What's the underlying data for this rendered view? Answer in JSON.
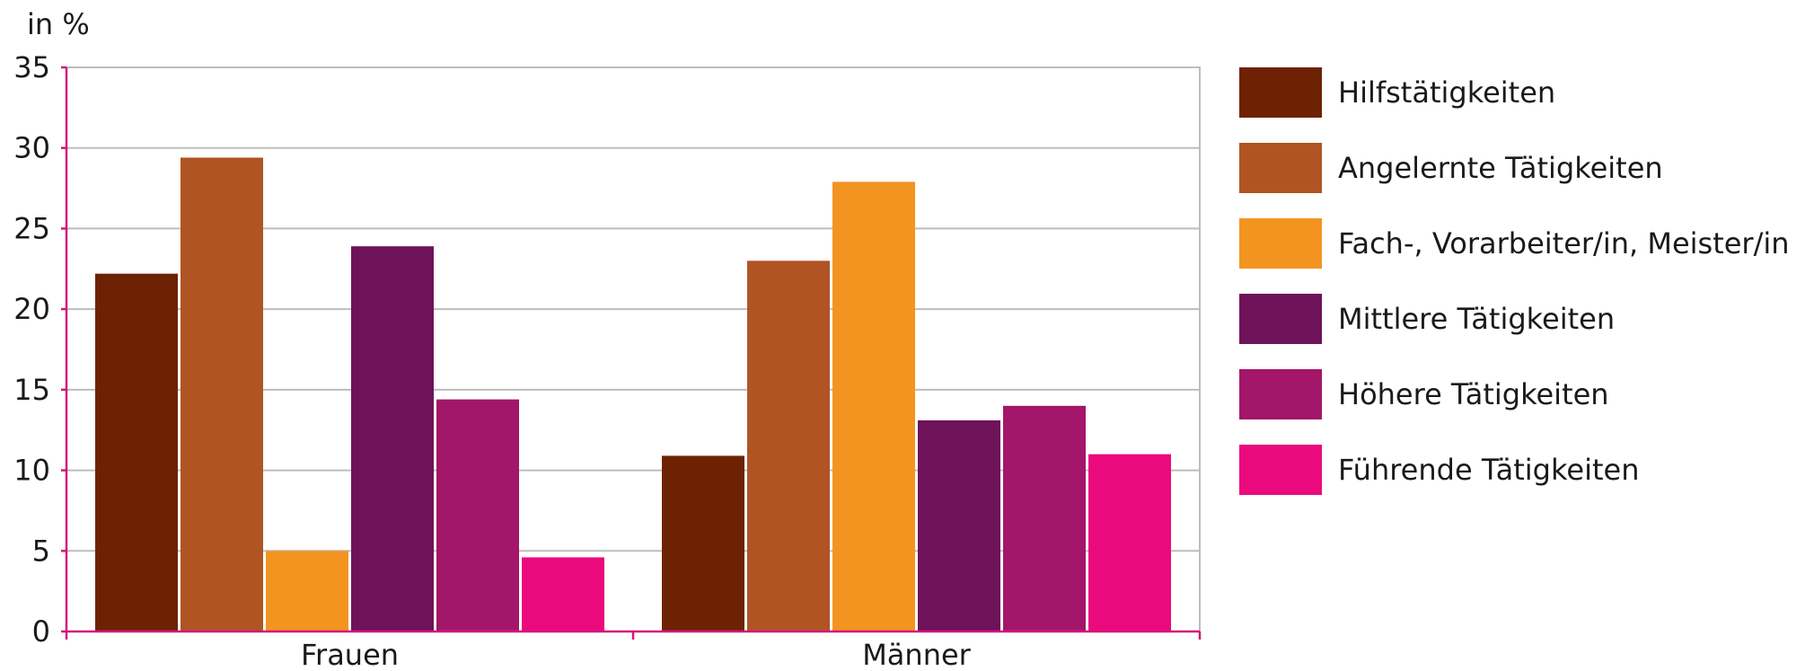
{
  "chart_data": {
    "type": "bar",
    "unit_label": "in %",
    "categories": [
      "Frauen",
      "Männer"
    ],
    "ylim": [
      0,
      35
    ],
    "yticks": [
      0,
      5,
      10,
      15,
      20,
      25,
      30,
      35
    ],
    "ytick_labels": [
      "0",
      "5",
      "10",
      "15",
      "20",
      "25",
      "30",
      "35"
    ],
    "grid": true,
    "legend_position": "right",
    "series": [
      {
        "name": "Hilfstätigkeiten",
        "color": "#6e2204",
        "values": [
          22.2,
          10.9
        ]
      },
      {
        "name": "Angelernte Tätigkeiten",
        "color": "#b05424",
        "values": [
          29.4,
          23.0
        ]
      },
      {
        "name": "Fach-, Vorarbeiter/in, Meister/in",
        "color": "#f39421",
        "values": [
          5.0,
          27.9
        ]
      },
      {
        "name": "Mittlere Tätigkeiten",
        "color": "#6e1259",
        "values": [
          23.9,
          13.1
        ]
      },
      {
        "name": "Höhere Tätigkeiten",
        "color": "#a31669",
        "values": [
          14.4,
          14.0
        ]
      },
      {
        "name": "Führende Tätigkeiten",
        "color": "#ea0a7e",
        "values": [
          4.6,
          11.0
        ]
      }
    ],
    "colors": {
      "axis": "#d4167c",
      "grid": "#bdbdbd"
    }
  }
}
